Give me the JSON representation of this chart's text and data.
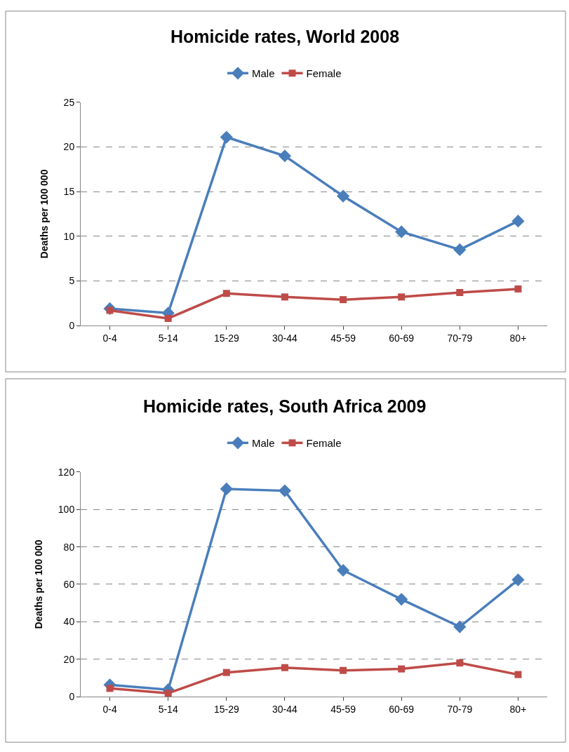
{
  "chart_data": [
    {
      "type": "line",
      "title": "Homicide rates, World 2008",
      "ylabel": "Deaths per 100 000",
      "categories": [
        "0-4",
        "5-14",
        "15-29",
        "30-44",
        "45-59",
        "60-69",
        "70-79",
        "80+"
      ],
      "ylim": [
        0,
        25
      ],
      "yticks": [
        0,
        5,
        10,
        15,
        20,
        25
      ],
      "grid": "y",
      "legend": "top",
      "series": [
        {
          "name": "Male",
          "color": "#4a7ebb",
          "marker": "diamond",
          "values": [
            1.9,
            1.4,
            21.1,
            19.0,
            14.5,
            10.5,
            8.5,
            11.7
          ]
        },
        {
          "name": "Female",
          "color": "#be4b48",
          "marker": "square",
          "values": [
            1.7,
            0.8,
            3.6,
            3.2,
            2.9,
            3.2,
            3.7,
            4.1
          ]
        }
      ]
    },
    {
      "type": "line",
      "title": "Homicide rates, South Africa 2009",
      "ylabel": "Deaths per 100 000",
      "categories": [
        "0-4",
        "5-14",
        "15-29",
        "30-44",
        "45-59",
        "60-69",
        "70-79",
        "80+"
      ],
      "ylim": [
        0,
        120
      ],
      "yticks": [
        0,
        20,
        40,
        60,
        80,
        100,
        120
      ],
      "grid": "y",
      "legend": "top",
      "series": [
        {
          "name": "Male",
          "color": "#4a7ebb",
          "marker": "diamond",
          "values": [
            6.3,
            3.7,
            111,
            110,
            67.5,
            52,
            37.3,
            62.4
          ]
        },
        {
          "name": "Female",
          "color": "#be4b48",
          "marker": "square",
          "values": [
            4.4,
            1.8,
            12.9,
            15.5,
            14,
            14.8,
            18,
            11.8
          ]
        }
      ]
    }
  ]
}
